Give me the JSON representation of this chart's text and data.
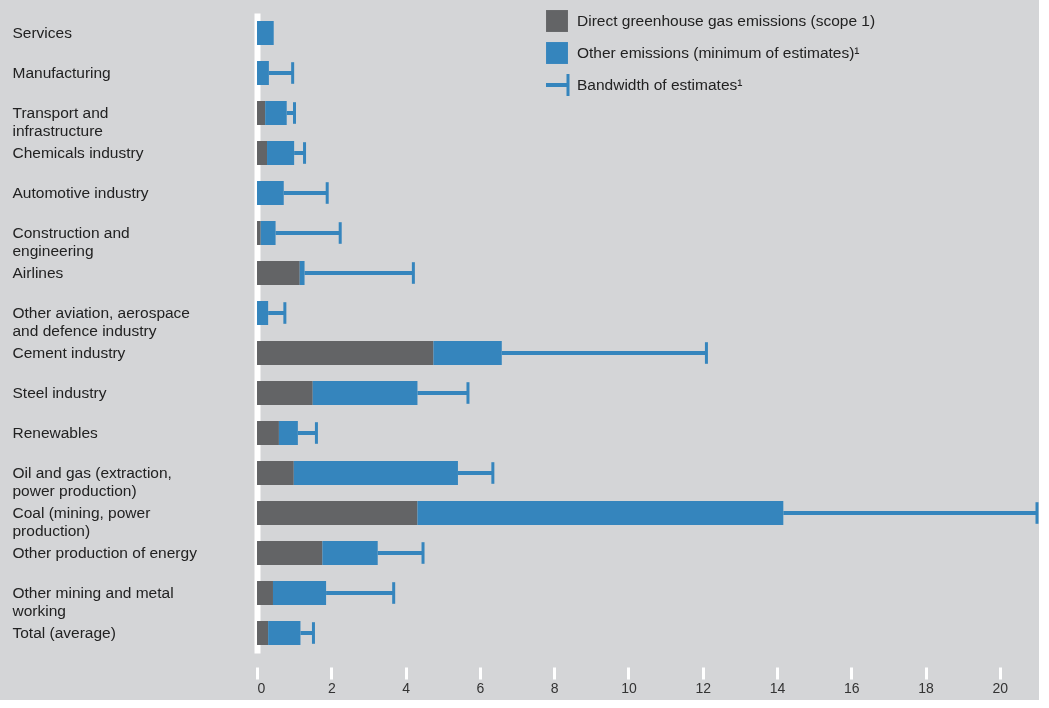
{
  "chart_data": {
    "type": "bar",
    "orientation": "horizontal",
    "stacked": true,
    "categories": [
      "Services",
      "Manufacturing",
      "Transport and infrastructure",
      "Chemicals industry",
      "Automotive industry",
      "Construction and engineering",
      "Airlines",
      "Other aviation, aerospace and defence industry",
      "Cement industry",
      "Steel industry",
      "Renewables",
      "Oil and gas (extraction, power production)",
      "Coal (mining, power production)",
      "Other production of energy",
      "Other mining and metal working",
      "Total (average)"
    ],
    "series": [
      {
        "name": "Direct greenhouse gas emissions (scope 1)",
        "color": "#636466",
        "values": [
          0,
          0,
          0.22,
          0.27,
          0,
          0.1,
          1.15,
          0,
          4.75,
          1.5,
          0.59,
          0.99,
          4.32,
          1.76,
          0.43,
          0.3
        ]
      },
      {
        "name": "Other emissions (minimum of estimates)¹",
        "color": "#3585bd",
        "values": [
          0.45,
          0.32,
          0.58,
          0.73,
          0.72,
          0.4,
          0.13,
          0.3,
          1.84,
          2.82,
          0.51,
          4.42,
          9.85,
          1.49,
          1.43,
          0.87
        ],
        "errors": [
          null,
          [
            0.32,
            0.96
          ],
          [
            0.8,
            1.01
          ],
          [
            1.0,
            1.28
          ],
          [
            0.72,
            1.89
          ],
          [
            0.5,
            2.24
          ],
          [
            1.28,
            4.21
          ],
          [
            0.3,
            0.75
          ],
          [
            6.59,
            12.1
          ],
          [
            4.32,
            5.68
          ],
          [
            1.1,
            1.6
          ],
          [
            5.41,
            6.35
          ],
          [
            14.17,
            21.0
          ],
          [
            3.25,
            4.47
          ],
          [
            1.86,
            3.68
          ],
          [
            1.17,
            1.52
          ]
        ]
      }
    ],
    "annotations": [
      "Bandwidth of estimates¹"
    ],
    "xlim": [
      0,
      21
    ],
    "xticks": [
      0,
      2,
      4,
      6,
      8,
      10,
      12,
      14,
      16,
      18,
      20
    ],
    "grid": false,
    "legend": "top right"
  }
}
